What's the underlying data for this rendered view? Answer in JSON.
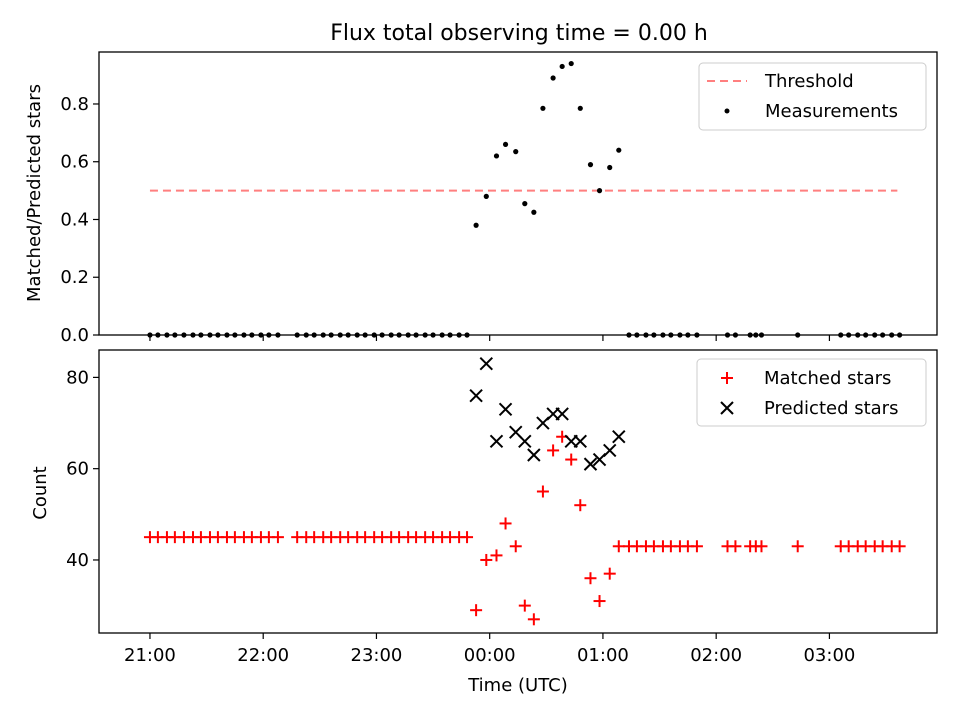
{
  "chart_data": [
    {
      "type": "scatter",
      "title": "Flux total observing time = 0.00 h",
      "xlabel": "",
      "ylabel": "Matched/Predicted stars",
      "ylim": [
        0,
        0.98
      ],
      "yticks": [
        "0.0",
        "0.2",
        "0.4",
        "0.6",
        "0.8"
      ],
      "ytick_values": [
        0,
        0.2,
        0.4,
        0.6,
        0.8
      ],
      "xlim_hours": [
        -3.45,
        3.95
      ],
      "xticks_hours": [
        -3,
        -2,
        -1,
        0,
        1,
        2,
        3
      ],
      "legend_position": "upper right",
      "threshold": {
        "name": "Threshold",
        "y": 0.5,
        "x_range": [
          -3.0,
          3.6
        ],
        "color": "#ff7f7f"
      },
      "series": [
        {
          "name": "Measurements",
          "color": "#000000",
          "marker": "dot",
          "points": [
            [
              -3.0,
              0
            ],
            [
              -2.93,
              0
            ],
            [
              -2.85,
              0
            ],
            [
              -2.78,
              0
            ],
            [
              -2.7,
              0
            ],
            [
              -2.62,
              0
            ],
            [
              -2.55,
              0
            ],
            [
              -2.47,
              0
            ],
            [
              -2.4,
              0
            ],
            [
              -2.32,
              0
            ],
            [
              -2.25,
              0
            ],
            [
              -2.17,
              0
            ],
            [
              -2.1,
              0
            ],
            [
              -2.02,
              0
            ],
            [
              -1.95,
              0
            ],
            [
              -1.87,
              0
            ],
            [
              -1.7,
              0
            ],
            [
              -1.62,
              0
            ],
            [
              -1.55,
              0
            ],
            [
              -1.47,
              0
            ],
            [
              -1.4,
              0
            ],
            [
              -1.32,
              0
            ],
            [
              -1.25,
              0
            ],
            [
              -1.17,
              0
            ],
            [
              -1.1,
              0
            ],
            [
              -1.02,
              0
            ],
            [
              -0.95,
              0
            ],
            [
              -0.87,
              0
            ],
            [
              -0.8,
              0
            ],
            [
              -0.72,
              0
            ],
            [
              -0.65,
              0
            ],
            [
              -0.57,
              0
            ],
            [
              -0.5,
              0
            ],
            [
              -0.42,
              0
            ],
            [
              -0.35,
              0
            ],
            [
              -0.27,
              0
            ],
            [
              -0.2,
              0
            ],
            [
              -0.12,
              0.38
            ],
            [
              -0.03,
              0.48
            ],
            [
              0.06,
              0.62
            ],
            [
              0.14,
              0.66
            ],
            [
              0.23,
              0.635
            ],
            [
              0.31,
              0.455
            ],
            [
              0.39,
              0.425
            ],
            [
              0.47,
              0.785
            ],
            [
              0.56,
              0.89
            ],
            [
              0.64,
              0.93
            ],
            [
              0.72,
              0.94
            ],
            [
              0.8,
              0.785
            ],
            [
              0.89,
              0.59
            ],
            [
              0.97,
              0.5
            ],
            [
              1.06,
              0.58
            ],
            [
              1.14,
              0.64
            ],
            [
              1.23,
              0
            ],
            [
              1.3,
              0
            ],
            [
              1.38,
              0
            ],
            [
              1.45,
              0
            ],
            [
              1.53,
              0
            ],
            [
              1.6,
              0
            ],
            [
              1.68,
              0
            ],
            [
              1.75,
              0
            ],
            [
              1.83,
              0
            ],
            [
              2.1,
              0
            ],
            [
              2.17,
              0
            ],
            [
              2.3,
              0
            ],
            [
              2.35,
              0
            ],
            [
              2.4,
              0
            ],
            [
              2.72,
              0
            ],
            [
              3.1,
              0
            ],
            [
              3.17,
              0
            ],
            [
              3.25,
              0
            ],
            [
              3.32,
              0
            ],
            [
              3.4,
              0
            ],
            [
              3.47,
              0
            ],
            [
              3.55,
              0
            ],
            [
              3.62,
              0
            ]
          ]
        }
      ]
    },
    {
      "type": "scatter",
      "title": "",
      "xlabel": "Time (UTC)",
      "ylabel": "Count",
      "ylim": [
        24,
        86
      ],
      "yticks": [
        "40",
        "60",
        "80"
      ],
      "ytick_values": [
        40,
        60,
        80
      ],
      "xlim_hours": [
        -3.45,
        3.95
      ],
      "xticks_hours": [
        -3,
        -2,
        -1,
        0,
        1,
        2,
        3
      ],
      "xtick_labels": [
        "21:00",
        "22:00",
        "23:00",
        "00:00",
        "01:00",
        "02:00",
        "03:00"
      ],
      "legend_position": "upper right",
      "series": [
        {
          "name": "Matched stars",
          "color": "#ff0000",
          "marker": "plus",
          "points": [
            [
              -3.0,
              45
            ],
            [
              -2.93,
              45
            ],
            [
              -2.85,
              45
            ],
            [
              -2.78,
              45
            ],
            [
              -2.7,
              45
            ],
            [
              -2.62,
              45
            ],
            [
              -2.55,
              45
            ],
            [
              -2.47,
              45
            ],
            [
              -2.4,
              45
            ],
            [
              -2.32,
              45
            ],
            [
              -2.25,
              45
            ],
            [
              -2.17,
              45
            ],
            [
              -2.1,
              45
            ],
            [
              -2.02,
              45
            ],
            [
              -1.95,
              45
            ],
            [
              -1.87,
              45
            ],
            [
              -1.7,
              45
            ],
            [
              -1.62,
              45
            ],
            [
              -1.55,
              45
            ],
            [
              -1.47,
              45
            ],
            [
              -1.4,
              45
            ],
            [
              -1.32,
              45
            ],
            [
              -1.25,
              45
            ],
            [
              -1.17,
              45
            ],
            [
              -1.1,
              45
            ],
            [
              -1.02,
              45
            ],
            [
              -0.95,
              45
            ],
            [
              -0.87,
              45
            ],
            [
              -0.8,
              45
            ],
            [
              -0.72,
              45
            ],
            [
              -0.65,
              45
            ],
            [
              -0.57,
              45
            ],
            [
              -0.5,
              45
            ],
            [
              -0.42,
              45
            ],
            [
              -0.35,
              45
            ],
            [
              -0.27,
              45
            ],
            [
              -0.2,
              45
            ],
            [
              -0.12,
              29
            ],
            [
              -0.03,
              40
            ],
            [
              0.06,
              41
            ],
            [
              0.14,
              48
            ],
            [
              0.23,
              43
            ],
            [
              0.31,
              30
            ],
            [
              0.39,
              27
            ],
            [
              0.47,
              55
            ],
            [
              0.56,
              64
            ],
            [
              0.64,
              67
            ],
            [
              0.72,
              62
            ],
            [
              0.8,
              52
            ],
            [
              0.89,
              36
            ],
            [
              0.97,
              31
            ],
            [
              1.06,
              37
            ],
            [
              1.14,
              43
            ],
            [
              1.23,
              43
            ],
            [
              1.3,
              43
            ],
            [
              1.38,
              43
            ],
            [
              1.45,
              43
            ],
            [
              1.53,
              43
            ],
            [
              1.6,
              43
            ],
            [
              1.68,
              43
            ],
            [
              1.75,
              43
            ],
            [
              1.83,
              43
            ],
            [
              2.1,
              43
            ],
            [
              2.17,
              43
            ],
            [
              2.3,
              43
            ],
            [
              2.35,
              43
            ],
            [
              2.4,
              43
            ],
            [
              2.72,
              43
            ],
            [
              3.1,
              43
            ],
            [
              3.17,
              43
            ],
            [
              3.25,
              43
            ],
            [
              3.32,
              43
            ],
            [
              3.4,
              43
            ],
            [
              3.47,
              43
            ],
            [
              3.55,
              43
            ],
            [
              3.62,
              43
            ]
          ]
        },
        {
          "name": "Predicted stars",
          "color": "#000000",
          "marker": "x",
          "points": [
            [
              -0.12,
              76
            ],
            [
              -0.03,
              83
            ],
            [
              0.06,
              66
            ],
            [
              0.14,
              73
            ],
            [
              0.23,
              68
            ],
            [
              0.31,
              66
            ],
            [
              0.39,
              63
            ],
            [
              0.47,
              70
            ],
            [
              0.56,
              72
            ],
            [
              0.64,
              72
            ],
            [
              0.72,
              66
            ],
            [
              0.8,
              66
            ],
            [
              0.89,
              61
            ],
            [
              0.97,
              62
            ],
            [
              1.06,
              64
            ],
            [
              1.14,
              67
            ]
          ]
        }
      ]
    }
  ]
}
